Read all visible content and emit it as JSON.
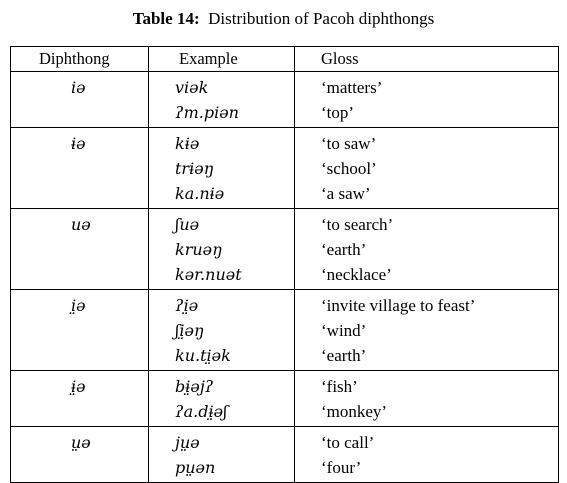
{
  "caption": {
    "label": "Table 14:",
    "title": "Distribution of Pacoh diphthongs"
  },
  "headers": {
    "diphthong": "Diphthong",
    "example": "Example",
    "gloss": "Gloss"
  },
  "groups": [
    {
      "diphthong": "iə",
      "rows": [
        {
          "example": "viək",
          "gloss": "‘matters’"
        },
        {
          "example": "ʔm.piən",
          "gloss": "‘top’"
        }
      ]
    },
    {
      "diphthong": "ɨə",
      "rows": [
        {
          "example": "kɨə",
          "gloss": "‘to saw’"
        },
        {
          "example": "trɨəŋ",
          "gloss": "‘school’"
        },
        {
          "example": "ka.nɨə",
          "gloss": "‘a saw’"
        }
      ]
    },
    {
      "diphthong": "uə",
      "rows": [
        {
          "example": "ʃuə",
          "gloss": "‘to search’"
        },
        {
          "example": "kruəŋ",
          "gloss": "‘earth’"
        },
        {
          "example": "kər.nuət",
          "gloss": "‘necklace’"
        }
      ]
    },
    {
      "diphthong": "i̤ə",
      "rows": [
        {
          "example": "ʔi̤ə",
          "gloss": "‘invite village to feast’"
        },
        {
          "example": "ʃi̤əŋ",
          "gloss": "‘wind’"
        },
        {
          "example": "ku.ti̤ək",
          "gloss": "‘earth’"
        }
      ]
    },
    {
      "diphthong": "ɨ̤ə",
      "rows": [
        {
          "example": "bɨ̤əjʔ",
          "gloss": "‘fish’"
        },
        {
          "example": "ʔa.dɨ̤əʃ",
          "gloss": "‘monkey’"
        }
      ]
    },
    {
      "diphthong": "ṳə",
      "rows": [
        {
          "example": "jṳə",
          "gloss": "‘to call’"
        },
        {
          "example": "pṳən",
          "gloss": "‘four’"
        }
      ]
    }
  ]
}
